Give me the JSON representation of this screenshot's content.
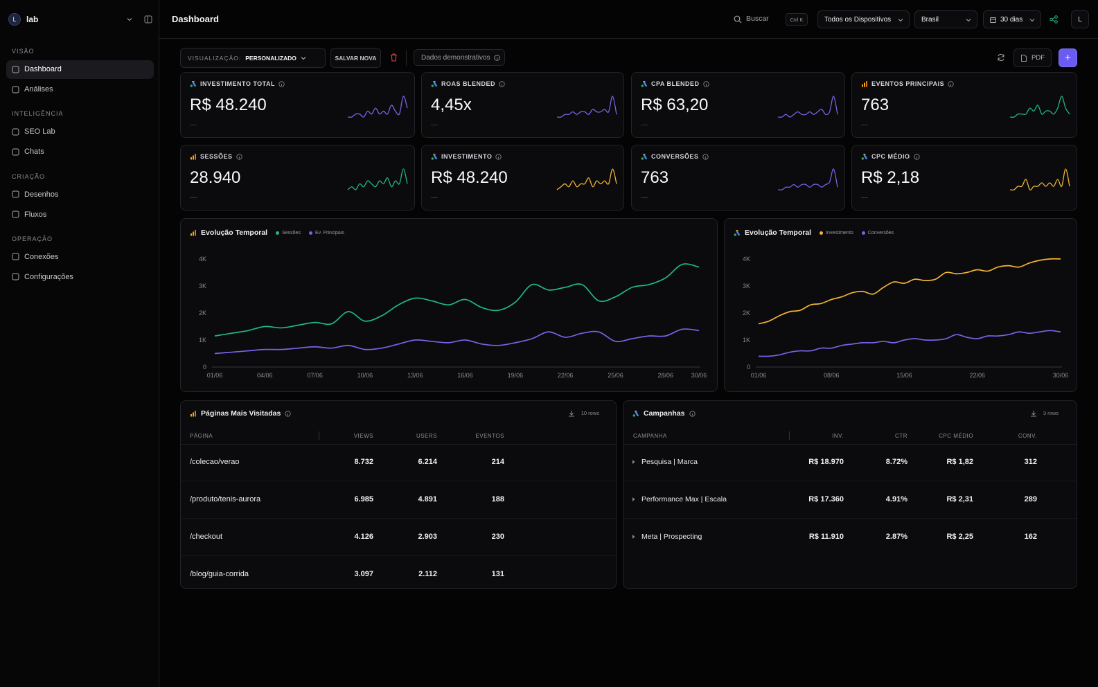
{
  "sidebar": {
    "workspace_initial": "L",
    "workspace": "lab",
    "sections": [
      {
        "title": "VISÃO",
        "items": [
          "Dashboard",
          "Análises"
        ]
      },
      {
        "title": "INTELIGÊNCIA",
        "items": [
          "SEO Lab",
          "Chats"
        ]
      },
      {
        "title": "CRIAÇÃO",
        "items": [
          "Desenhos",
          "Fluxos"
        ]
      },
      {
        "title": "OPERAÇÃO",
        "items": [
          "Conexões",
          "Configurações"
        ]
      }
    ]
  },
  "header": {
    "title": "Dashboard",
    "search": "Buscar",
    "shortcut": "Ctrl K",
    "devices": "Todos os Dispositivos",
    "country": "Brasil",
    "period": "30 dias",
    "avatar": "L"
  },
  "toolbar": {
    "view_label": "VISUALIZAÇÃO:",
    "view": "PERSONALIZADO",
    "save": "SALVAR NOVA",
    "demo": "Dados demonstrativos",
    "pdf": "PDF",
    "add": "+"
  },
  "kpis": [
    {
      "label": "INVESTIMENTO TOTAL",
      "value": "R$ 48.240",
      "delta": "—",
      "icon": "ads",
      "color": "#7b61e8",
      "spark": [
        2,
        2,
        3,
        3,
        2,
        4,
        3,
        5,
        3,
        4,
        3,
        6,
        4,
        3,
        9,
        5
      ]
    },
    {
      "label": "ROAS BLENDED",
      "value": "4,45x",
      "delta": "—",
      "icon": "ads",
      "color": "#7b61e8",
      "spark": [
        2,
        2,
        3,
        3,
        4,
        3,
        4,
        4,
        3,
        5,
        4,
        4,
        5,
        4,
        10,
        3
      ]
    },
    {
      "label": "CPA BLENDED",
      "value": "R$ 63,20",
      "delta": "—",
      "icon": "ads",
      "color": "#7b61e8",
      "spark": [
        2,
        2,
        3,
        2,
        3,
        4,
        3,
        3,
        4,
        3,
        4,
        5,
        3,
        4,
        10,
        3
      ]
    },
    {
      "label": "EVENTOS PRINCIPAIS",
      "value": "763",
      "delta": "—",
      "icon": "analytics",
      "color": "#1fb981",
      "spark": [
        2,
        2,
        3,
        3,
        3,
        5,
        4,
        6,
        3,
        4,
        4,
        3,
        5,
        9,
        5,
        3
      ]
    },
    {
      "label": "SESSÕES",
      "value": "28.940",
      "delta": "—",
      "icon": "analytics",
      "color": "#1fb981",
      "spark": [
        2,
        3,
        2,
        4,
        3,
        5,
        4,
        3,
        5,
        4,
        6,
        3,
        5,
        4,
        9,
        4
      ]
    },
    {
      "label": "INVESTIMENTO",
      "value": "R$ 48.240",
      "delta": "—",
      "icon": "ads",
      "color": "#f2b630",
      "spark": [
        2,
        3,
        4,
        3,
        5,
        3,
        4,
        4,
        6,
        3,
        5,
        4,
        5,
        4,
        9,
        4
      ]
    },
    {
      "label": "CONVERSÕES",
      "value": "763",
      "delta": "—",
      "icon": "ads",
      "color": "#7b61e8",
      "spark": [
        2,
        2,
        3,
        3,
        4,
        3,
        4,
        4,
        3,
        4,
        4,
        3,
        4,
        5,
        10,
        3
      ]
    },
    {
      "label": "CPC MÉDIO",
      "value": "R$ 2,18",
      "delta": "—",
      "icon": "ads",
      "color": "#f2b630",
      "spark": [
        3,
        3,
        4,
        4,
        6,
        3,
        4,
        4,
        5,
        4,
        5,
        4,
        6,
        4,
        9,
        4
      ]
    }
  ],
  "chart_data": [
    {
      "type": "line",
      "title": "Evolução Temporal",
      "categories": [
        "01/06",
        null,
        null,
        "04/06",
        null,
        null,
        "07/06",
        null,
        null,
        "10/06",
        null,
        null,
        "13/06",
        null,
        null,
        "16/06",
        null,
        null,
        "19/06",
        null,
        null,
        "22/06",
        null,
        null,
        "25/06",
        null,
        null,
        "28/06",
        null,
        "30/06"
      ],
      "series": [
        {
          "name": "Sessões",
          "color": "#1fb981",
          "values": [
            1150,
            1250,
            1350,
            1500,
            1450,
            1550,
            1650,
            1600,
            2050,
            1700,
            1900,
            2300,
            2550,
            2450,
            2300,
            2500,
            2200,
            2100,
            2400,
            3050,
            2850,
            2950,
            3050,
            2450,
            2600,
            2950,
            3050,
            3300,
            3800,
            3700
          ]
        },
        {
          "name": "Ev. Principais",
          "color": "#7b61e8",
          "values": [
            500,
            550,
            600,
            650,
            650,
            700,
            750,
            700,
            800,
            650,
            700,
            850,
            1000,
            950,
            900,
            1000,
            850,
            800,
            900,
            1050,
            1300,
            1100,
            1250,
            1300,
            950,
            1050,
            1150,
            1150,
            1400,
            1350
          ]
        }
      ],
      "ylim": [
        0,
        4100
      ],
      "yticks": [
        0,
        {
          "value": 1000,
          "label": "1K"
        },
        {
          "value": 2000,
          "label": "2K"
        },
        {
          "value": 3000,
          "label": "3K"
        },
        {
          "value": 4000,
          "label": "4K"
        }
      ],
      "grid": false
    },
    {
      "type": "line",
      "title": "Evolução Temporal",
      "categories": [
        "01/06",
        null,
        null,
        null,
        null,
        null,
        null,
        "08/06",
        null,
        null,
        null,
        null,
        null,
        null,
        "15/06",
        null,
        null,
        null,
        null,
        null,
        null,
        "22/06",
        null,
        null,
        null,
        null,
        null,
        null,
        null,
        "30/06"
      ],
      "series": [
        {
          "name": "Investimento",
          "color": "#f2b630",
          "values": [
            1600,
            1700,
            1900,
            2050,
            2100,
            2300,
            2350,
            2500,
            2600,
            2750,
            2800,
            2700,
            2950,
            3150,
            3100,
            3250,
            3200,
            3250,
            3500,
            3450,
            3500,
            3600,
            3550,
            3700,
            3750,
            3700,
            3850,
            3950,
            4000,
            4000
          ]
        },
        {
          "name": "Conversões",
          "color": "#7b61e8",
          "values": [
            400,
            400,
            450,
            550,
            600,
            600,
            700,
            700,
            800,
            850,
            900,
            900,
            950,
            900,
            1000,
            1050,
            1000,
            1000,
            1050,
            1200,
            1100,
            1050,
            1150,
            1150,
            1200,
            1300,
            1250,
            1300,
            1350,
            1300
          ]
        }
      ],
      "ylim": [
        0,
        4100
      ],
      "yticks": [
        0,
        {
          "value": 1000,
          "label": "1K"
        },
        {
          "value": 2000,
          "label": "2K"
        },
        {
          "value": 3000,
          "label": "3K"
        },
        {
          "value": 4000,
          "label": "4K"
        }
      ],
      "grid": false
    }
  ],
  "tables": [
    {
      "title": "Páginas Mais Visitadas",
      "rows_label": "10 rows",
      "columns": [
        "PÁGINA",
        "VIEWS",
        "USERS",
        "EVENTOS"
      ],
      "rows": [
        [
          "/colecao/verao",
          "8.732",
          "6.214",
          "214"
        ],
        [
          "/produto/tenis-aurora",
          "6.985",
          "4.891",
          "188"
        ],
        [
          "/checkout",
          "4.126",
          "2.903",
          "230"
        ],
        [
          "/blog/guia-corrida",
          "3.097",
          "2.112",
          "131"
        ]
      ]
    },
    {
      "title": "Campanhas",
      "rows_label": "3 rows",
      "columns": [
        "CAMPANHA",
        "INV.",
        "CTR",
        "CPC MÉDIO",
        "CONV."
      ],
      "rows": [
        [
          "Pesquisa | Marca",
          "R$ 18.970",
          "8.72%",
          "R$ 1,82",
          "312"
        ],
        [
          "Performance Max | Escala",
          "R$ 17.360",
          "4.91%",
          "R$ 2,31",
          "289"
        ],
        [
          "Meta | Prospecting",
          "R$ 11.910",
          "2.87%",
          "R$ 2,25",
          "162"
        ]
      ]
    }
  ]
}
